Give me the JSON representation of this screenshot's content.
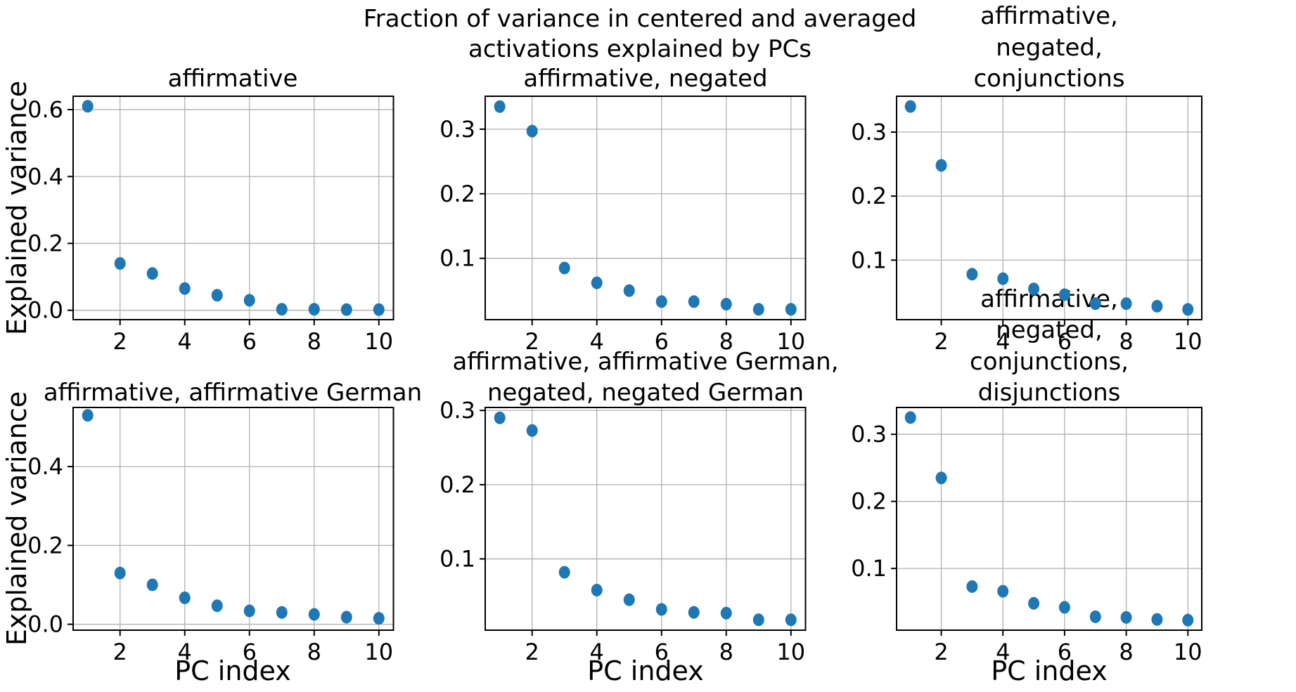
{
  "figure": {
    "title": "Fraction of variance in centered and averaged\nactivations explained by PCs",
    "ylabel": "Explained variance",
    "xlabel": "PC index",
    "background_color": "#ffffff",
    "marker_color": "#1f77b4",
    "grid_color": "#b0b0b0",
    "spine_color": "#000000"
  },
  "chart_data": [
    {
      "type": "scatter",
      "title": "affirmative",
      "x": [
        1,
        2,
        3,
        4,
        5,
        6,
        7,
        8,
        9,
        10
      ],
      "values": [
        0.61,
        0.14,
        0.11,
        0.065,
        0.045,
        0.03,
        0.003,
        0.003,
        0.002,
        0.002
      ],
      "xlabel": "PC index",
      "ylabel": "Explained variance",
      "xlim": [
        0.55,
        10.45
      ],
      "ylim": [
        -0.028,
        0.64
      ],
      "xticks": [
        2,
        4,
        6,
        8,
        10
      ],
      "yticks": [
        0.0,
        0.2,
        0.4,
        0.6
      ],
      "yticklabels": [
        "0.0",
        "0.2",
        "0.4",
        "0.6"
      ],
      "grid": true,
      "legend": "none",
      "marker_color": "#1f77b4"
    },
    {
      "type": "scatter",
      "title": "affirmative, negated",
      "x": [
        1,
        2,
        3,
        4,
        5,
        6,
        7,
        8,
        9,
        10
      ],
      "values": [
        0.335,
        0.297,
        0.085,
        0.062,
        0.05,
        0.033,
        0.033,
        0.029,
        0.021,
        0.021
      ],
      "xlabel": "",
      "ylabel": "",
      "xlim": [
        0.55,
        10.45
      ],
      "ylim": [
        0.005,
        0.351
      ],
      "xticks": [
        2,
        4,
        6,
        8,
        10
      ],
      "yticks": [
        0.1,
        0.2,
        0.3
      ],
      "yticklabels": [
        "0.1",
        "0.2",
        "0.3"
      ],
      "grid": true,
      "legend": "none",
      "marker_color": "#1f77b4"
    },
    {
      "type": "scatter",
      "title": "affirmative, negated, conjunctions",
      "x": [
        1,
        2,
        3,
        4,
        5,
        6,
        7,
        8,
        9,
        10
      ],
      "values": [
        0.34,
        0.248,
        0.078,
        0.071,
        0.055,
        0.046,
        0.032,
        0.032,
        0.028,
        0.023
      ],
      "xlabel": "",
      "ylabel": "",
      "xlim": [
        0.55,
        10.45
      ],
      "ylim": [
        0.007,
        0.356
      ],
      "xticks": [
        2,
        4,
        6,
        8,
        10
      ],
      "yticks": [
        0.1,
        0.2,
        0.3
      ],
      "yticklabels": [
        "0.1",
        "0.2",
        "0.3"
      ],
      "grid": true,
      "legend": "none",
      "marker_color": "#1f77b4"
    },
    {
      "type": "scatter",
      "title": "affirmative, affirmative German",
      "x": [
        1,
        2,
        3,
        4,
        5,
        6,
        7,
        8,
        9,
        10
      ],
      "values": [
        0.53,
        0.13,
        0.1,
        0.067,
        0.047,
        0.034,
        0.03,
        0.025,
        0.018,
        0.015
      ],
      "xlabel": "PC index",
      "ylabel": "Explained variance",
      "xlim": [
        0.55,
        10.45
      ],
      "ylim": [
        -0.015,
        0.55
      ],
      "xticks": [
        2,
        4,
        6,
        8,
        10
      ],
      "yticks": [
        0.0,
        0.2,
        0.4
      ],
      "yticklabels": [
        "0.0",
        "0.2",
        "0.4"
      ],
      "grid": true,
      "legend": "none",
      "marker_color": "#1f77b4"
    },
    {
      "type": "scatter",
      "title": "affirmative, affirmative German,\nnegated, negated German",
      "x": [
        1,
        2,
        3,
        4,
        5,
        6,
        7,
        8,
        9,
        10
      ],
      "values": [
        0.29,
        0.273,
        0.082,
        0.058,
        0.045,
        0.032,
        0.028,
        0.027,
        0.018,
        0.018
      ],
      "xlabel": "PC index",
      "ylabel": "",
      "xlim": [
        0.55,
        10.45
      ],
      "ylim": [
        0.004,
        0.304
      ],
      "xticks": [
        2,
        4,
        6,
        8,
        10
      ],
      "yticks": [
        0.1,
        0.2,
        0.3
      ],
      "yticklabels": [
        "0.1",
        "0.2",
        "0.3"
      ],
      "grid": true,
      "legend": "none",
      "marker_color": "#1f77b4"
    },
    {
      "type": "scatter",
      "title": "affirmative, negated,\nconjunctions, disjunctions",
      "x": [
        1,
        2,
        3,
        4,
        5,
        6,
        7,
        8,
        9,
        10
      ],
      "values": [
        0.325,
        0.235,
        0.073,
        0.066,
        0.048,
        0.042,
        0.028,
        0.027,
        0.024,
        0.023
      ],
      "xlabel": "PC index",
      "ylabel": "",
      "xlim": [
        0.55,
        10.45
      ],
      "ylim": [
        0.008,
        0.34
      ],
      "xticks": [
        2,
        4,
        6,
        8,
        10
      ],
      "yticks": [
        0.1,
        0.2,
        0.3
      ],
      "yticklabels": [
        "0.1",
        "0.2",
        "0.3"
      ],
      "grid": true,
      "legend": "none",
      "marker_color": "#1f77b4"
    }
  ]
}
